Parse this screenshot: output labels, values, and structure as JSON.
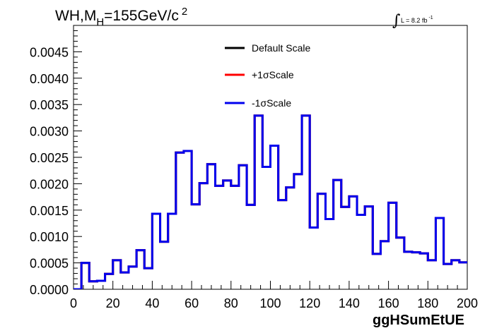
{
  "title_main": "WH,M",
  "title_sub": "H",
  "title_rest": "=155GeV/c",
  "title_sup": "2",
  "lumi_label": "L = 8.2 fb",
  "lumi_sup": "-1",
  "lumi_symbol": "∫",
  "colors": {
    "default": "#000000",
    "plus": "#ff0000",
    "minus": "#0000ee"
  },
  "chart_data": {
    "type": "line",
    "style": "step",
    "xlabel": "ggHSumEtUE",
    "ylabel": "",
    "xlim": [
      0,
      200
    ],
    "ylim": [
      0,
      0.005
    ],
    "grid": false,
    "legend_position": "top-center",
    "x_ticks": [
      0,
      20,
      40,
      60,
      80,
      100,
      120,
      140,
      160,
      180,
      200
    ],
    "y_ticks": [
      0.0,
      0.0005,
      0.001,
      0.0015,
      0.002,
      0.0025,
      0.003,
      0.0035,
      0.004,
      0.0045
    ],
    "y_tick_labels": [
      "0.0000",
      "0.0005",
      "0.0010",
      "0.0015",
      "0.0020",
      "0.0025",
      "0.0030",
      "0.0035",
      "0.0040",
      "0.0045"
    ],
    "bin_edges": [
      0,
      4,
      8,
      12,
      16,
      20,
      24,
      28,
      32,
      36,
      40,
      44,
      48,
      52,
      56,
      60,
      64,
      68,
      72,
      76,
      80,
      84,
      88,
      92,
      96,
      100,
      104,
      108,
      112,
      116,
      120,
      124,
      128,
      132,
      136,
      140,
      144,
      148,
      152,
      156,
      160,
      164,
      168,
      172,
      176,
      180,
      184,
      188,
      192,
      196,
      200
    ],
    "series": [
      {
        "name": "Default Scale",
        "color": "#000000",
        "values": [
          0.0,
          0.0005,
          0.00015,
          0.00016,
          0.00029,
          0.00055,
          0.00032,
          0.00043,
          0.00074,
          0.0004,
          0.00143,
          0.0009,
          0.00143,
          0.00259,
          0.00262,
          0.00161,
          0.00201,
          0.00237,
          0.00196,
          0.00206,
          0.00196,
          0.00235,
          0.0016,
          0.00329,
          0.00232,
          0.00272,
          0.00169,
          0.00193,
          0.00218,
          0.00329,
          0.00117,
          0.00181,
          0.00133,
          0.00207,
          0.00156,
          0.00176,
          0.00141,
          0.00157,
          0.00067,
          0.00091,
          0.00164,
          0.00098,
          0.00071,
          0.0007,
          0.00068,
          0.00055,
          0.00135,
          0.00048,
          0.00055,
          0.00051
        ]
      },
      {
        "name": "+1σScale",
        "color": "#ff0000",
        "values": [
          0.0,
          0.0005,
          0.00015,
          0.00016,
          0.00029,
          0.00055,
          0.00032,
          0.00043,
          0.00074,
          0.0004,
          0.00143,
          0.0009,
          0.00143,
          0.00259,
          0.00262,
          0.00161,
          0.00201,
          0.00237,
          0.00196,
          0.00206,
          0.00196,
          0.00235,
          0.0016,
          0.00329,
          0.00232,
          0.00272,
          0.00169,
          0.00193,
          0.00218,
          0.00329,
          0.00117,
          0.00181,
          0.00133,
          0.00207,
          0.00156,
          0.00176,
          0.00141,
          0.00157,
          0.00067,
          0.00091,
          0.00164,
          0.00098,
          0.00071,
          0.0007,
          0.00068,
          0.00055,
          0.00135,
          0.00048,
          0.00055,
          0.00051
        ]
      },
      {
        "name": "-1σScale",
        "color": "#0000ee",
        "values": [
          0.0,
          0.0005,
          0.00015,
          0.00016,
          0.00029,
          0.00055,
          0.00032,
          0.00043,
          0.00074,
          0.0004,
          0.00143,
          0.0009,
          0.00143,
          0.00259,
          0.00262,
          0.00161,
          0.00201,
          0.00237,
          0.00196,
          0.00206,
          0.00196,
          0.00235,
          0.0016,
          0.00329,
          0.00232,
          0.00272,
          0.00169,
          0.00193,
          0.00218,
          0.00329,
          0.00117,
          0.00181,
          0.00133,
          0.00207,
          0.00156,
          0.00176,
          0.00141,
          0.00157,
          0.00067,
          0.00091,
          0.00164,
          0.00098,
          0.00071,
          0.0007,
          0.00068,
          0.00055,
          0.00135,
          0.00048,
          0.00055,
          0.00051
        ]
      }
    ]
  }
}
